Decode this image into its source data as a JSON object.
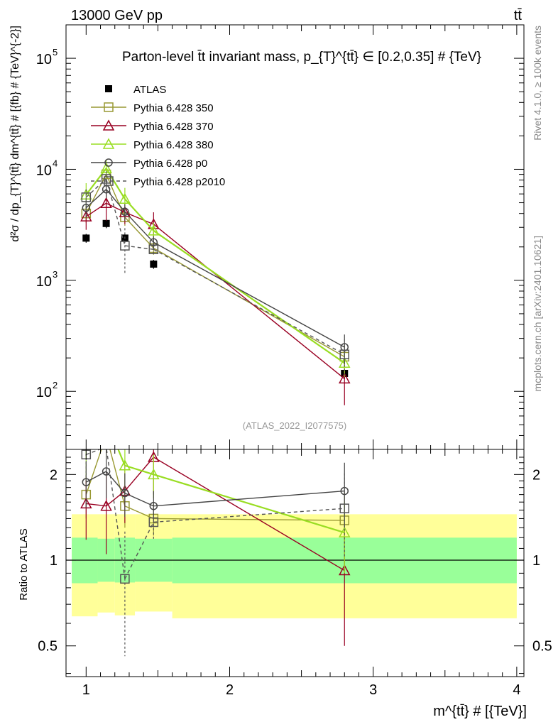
{
  "header": {
    "left": "13000 GeV pp",
    "right": "tt̄"
  },
  "side_labels": {
    "rivet": "Rivet 4.1.0, ≥ 100k events",
    "mcplots": "mcplots.cern.ch [arXiv:2401.10621]"
  },
  "chart_data": [
    {
      "id": "main",
      "type": "line",
      "title": "Parton-level t̄t invariant mass, p_{T}^{tt̄} ∈ [0.2,0.35] # {TeV}",
      "ylabel": "d²σ / dp_{T}^{tt̄} dm^{tt̄} # [{fb} # {TeV}^{-2}]",
      "xlabel": "m^{tt̄} # [{TeV}]",
      "annotation": "(ATLAS_2022_I2077575)",
      "xlim": [
        0.86,
        4.05
      ],
      "ylim": [
        30,
        200000
      ],
      "yscale": "log",
      "x_ticks": [
        1,
        2,
        3,
        4
      ],
      "y_ticks": [
        {
          "value": 100,
          "label": "10",
          "exp": "2"
        },
        {
          "value": 1000,
          "label": "10",
          "exp": "3"
        },
        {
          "value": 10000,
          "label": "10",
          "exp": "4"
        },
        {
          "value": 100000,
          "label": "10",
          "exp": "5"
        }
      ],
      "legend_position": "top-left",
      "series": [
        {
          "name": "ATLAS",
          "color": "#000000",
          "marker": "filled-square",
          "style": "none",
          "x": [
            1.0,
            1.14,
            1.27,
            1.47,
            2.8
          ],
          "y": [
            2400,
            3250,
            2400,
            1400,
            145
          ],
          "err": [
            [
              220,
              220
            ],
            [
              300,
              300
            ],
            [
              220,
              220
            ],
            [
              130,
              130
            ],
            [
              15,
              15
            ]
          ]
        },
        {
          "name": "Pythia 6.428 350",
          "color": "#999933",
          "marker": "open-square",
          "style": "solid",
          "x": [
            1.0,
            1.14,
            1.27,
            1.47,
            2.8
          ],
          "y": [
            4000,
            9000,
            3700,
            1950,
            205
          ],
          "err": [
            [
              700,
              700
            ],
            [
              1200,
              1200
            ],
            [
              600,
              600
            ],
            [
              250,
              250
            ],
            [
              55,
              55
            ]
          ]
        },
        {
          "name": "Pythia 6.428 370",
          "color": "#990022",
          "marker": "open-triangle",
          "style": "solid",
          "x": [
            1.0,
            1.14,
            1.27,
            1.47,
            2.8
          ],
          "y": [
            3750,
            4950,
            4100,
            3200,
            130
          ],
          "err": [
            [
              900,
              900
            ],
            [
              1500,
              1500
            ],
            [
              900,
              900
            ],
            [
              900,
              900
            ],
            [
              55,
              55
            ]
          ]
        },
        {
          "name": "Pythia 6.428 380",
          "color": "#99dd22",
          "marker": "open-triangle",
          "style": "solid",
          "x": [
            1.0,
            1.14,
            1.27,
            1.47,
            2.8
          ],
          "y": [
            5900,
            10200,
            5400,
            2800,
            180
          ],
          "err": [
            [
              1600,
              1600
            ],
            [
              2000,
              2000
            ],
            [
              1400,
              1400
            ],
            [
              500,
              500
            ],
            [
              45,
              45
            ]
          ]
        },
        {
          "name": "Pythia 6.428 p0",
          "color": "#444444",
          "marker": "open-circle",
          "style": "solid",
          "x": [
            1.0,
            1.14,
            1.27,
            1.47,
            2.8
          ],
          "y": [
            4500,
            6600,
            4150,
            2200,
            250
          ],
          "err": [
            [
              800,
              800
            ],
            [
              1100,
              1100
            ],
            [
              700,
              700
            ],
            [
              300,
              300
            ],
            [
              75,
              75
            ]
          ]
        },
        {
          "name": "Pythia 6.428 p2010",
          "color": "#555555",
          "marker": "open-square",
          "style": "dashed",
          "x": [
            1.0,
            1.14,
            1.27,
            1.47,
            2.8
          ],
          "y": [
            5600,
            8200,
            2050,
            1900,
            215
          ],
          "err": [
            [
              1000,
              1000
            ],
            [
              1400,
              1400
            ],
            [
              900,
              900
            ],
            [
              250,
              250
            ],
            [
              80,
              80
            ]
          ]
        }
      ]
    },
    {
      "id": "ratio",
      "type": "line",
      "ylabel": "Ratio to ATLAS",
      "xlabel": "m^{tt̄} # [{TeV}]",
      "xlim": [
        0.86,
        4.05
      ],
      "ylim": [
        0.39,
        2.45
      ],
      "yscale": "log",
      "x_ticks": [
        1,
        2,
        3,
        4
      ],
      "y_ticks": [
        0.5,
        1,
        2
      ],
      "reference": 1,
      "bands": {
        "edges": [
          0.9,
          1.08,
          1.2,
          1.34,
          1.6,
          4.0
        ],
        "yellow_lo": [
          0.635,
          0.655,
          0.64,
          0.66,
          0.625
        ],
        "yellow_hi": [
          1.45,
          1.45,
          1.45,
          1.45,
          1.45
        ],
        "green_lo": [
          0.83,
          0.84,
          0.835,
          0.84,
          0.83
        ],
        "green_hi": [
          1.2,
          1.19,
          1.2,
          1.19,
          1.2
        ],
        "yellow_color": "#ffff99",
        "green_color": "#99ff99"
      },
      "series": [
        {
          "name": "Pythia 6.428 350",
          "color": "#999933",
          "marker": "open-square",
          "style": "solid",
          "x": [
            1.0,
            1.14,
            1.27,
            1.47,
            2.8
          ],
          "y": [
            1.7,
            2.75,
            1.55,
            1.4,
            1.38
          ],
          "err": [
            [
              0.3,
              0.3
            ],
            [
              0.4,
              0.4
            ],
            [
              0.25,
              0.25
            ],
            [
              0.18,
              0.18
            ],
            [
              0.35,
              0.35
            ]
          ]
        },
        {
          "name": "Pythia 6.428 370",
          "color": "#990022",
          "marker": "open-triangle",
          "style": "solid",
          "x": [
            1.0,
            1.14,
            1.27,
            1.47,
            2.8
          ],
          "y": [
            1.58,
            1.55,
            1.75,
            2.3,
            0.92
          ],
          "err": [
            [
              0.4,
              0.4
            ],
            [
              0.5,
              0.5
            ],
            [
              0.4,
              0.4
            ],
            [
              0.6,
              0.6
            ],
            [
              0.42,
              0.42
            ]
          ]
        },
        {
          "name": "Pythia 6.428 380",
          "color": "#99dd22",
          "marker": "open-triangle",
          "style": "solid",
          "x": [
            1.0,
            1.14,
            1.27,
            1.47,
            2.8
          ],
          "y": [
            2.5,
            3.1,
            2.15,
            2.0,
            1.25
          ],
          "err": [
            [
              0.6,
              0.6
            ],
            [
              0.6,
              0.6
            ],
            [
              0.5,
              0.5
            ],
            [
              0.35,
              0.35
            ],
            [
              0.35,
              0.35
            ]
          ]
        },
        {
          "name": "Pythia 6.428 p0",
          "color": "#444444",
          "marker": "open-circle",
          "style": "solid",
          "x": [
            1.0,
            1.14,
            1.27,
            1.47,
            2.8
          ],
          "y": [
            1.88,
            2.05,
            1.72,
            1.55,
            1.75
          ],
          "err": [
            [
              0.35,
              0.35
            ],
            [
              0.4,
              0.4
            ],
            [
              0.3,
              0.3
            ],
            [
              0.2,
              0.2
            ],
            [
              0.45,
              0.45
            ]
          ]
        },
        {
          "name": "Pythia 6.428 p2010",
          "color": "#555555",
          "marker": "open-square",
          "style": "dashed",
          "x": [
            1.0,
            1.14,
            1.27,
            1.47,
            2.8
          ],
          "y": [
            2.35,
            2.5,
            0.86,
            1.36,
            1.52
          ],
          "err": [
            [
              0.45,
              0.45
            ],
            [
              0.45,
              0.45
            ],
            [
              0.4,
              0.4
            ],
            [
              0.18,
              0.18
            ],
            [
              0.5,
              0.5
            ]
          ]
        }
      ]
    }
  ]
}
